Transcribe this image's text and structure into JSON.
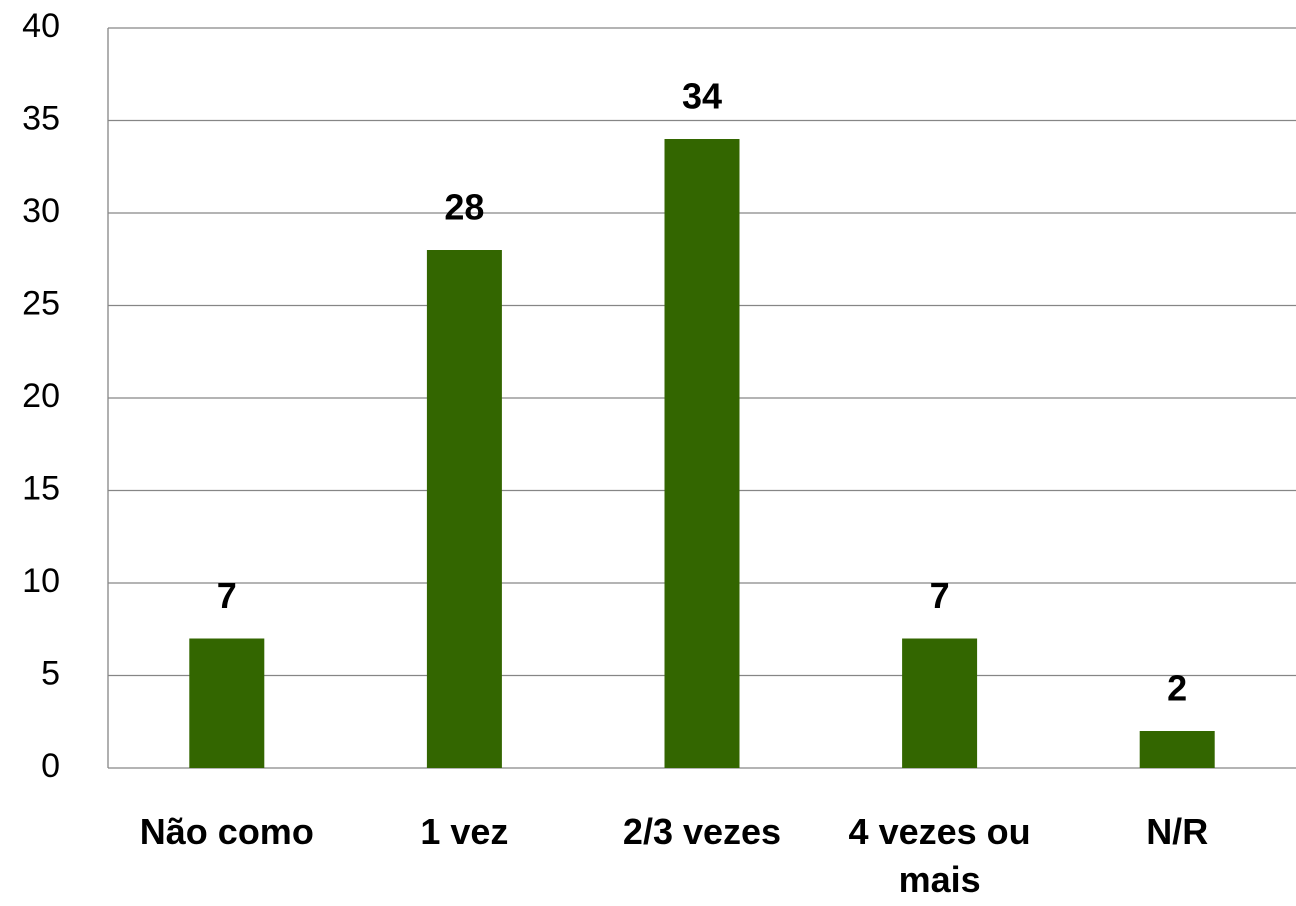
{
  "chart_data": {
    "type": "bar",
    "categories": [
      "Não como",
      "1 vez",
      "2/3 vezes",
      "4 vezes ou mais",
      "N/R"
    ],
    "values": [
      7,
      28,
      34,
      7,
      2
    ],
    "color": "#336600",
    "ylim": [
      0,
      40
    ],
    "yticks": [
      0,
      5,
      10,
      15,
      20,
      25,
      30,
      35,
      40
    ],
    "grid": true
  }
}
